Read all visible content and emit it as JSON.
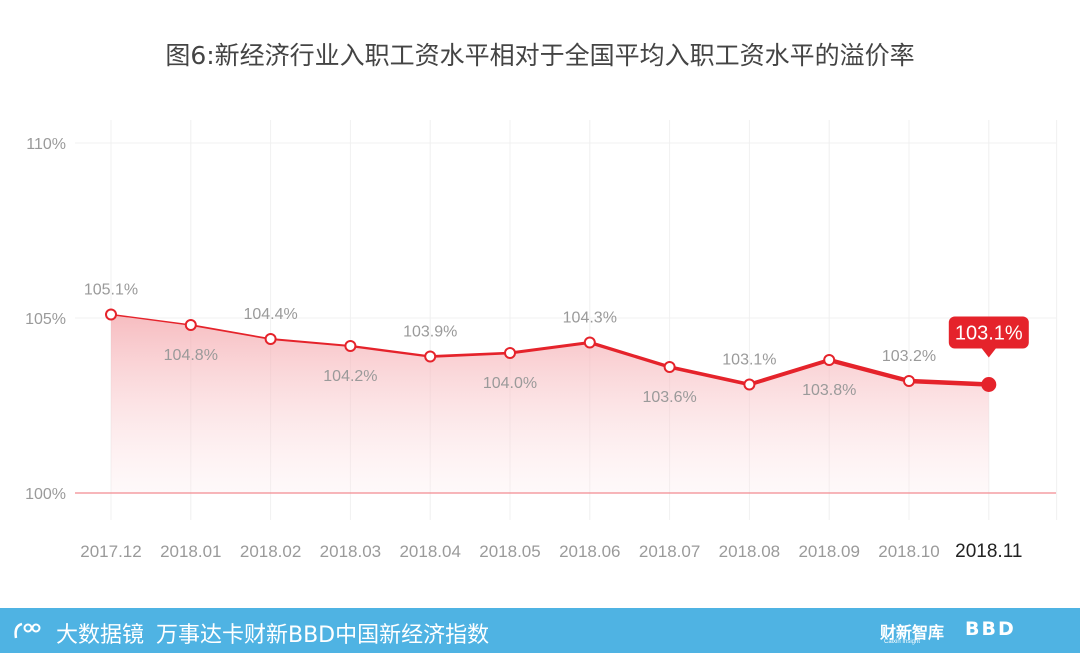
{
  "chart_data": {
    "type": "line",
    "title": "图6:新经济行业入职工资水平相对于全国平均入职工资水平的溢价率",
    "categories": [
      "2017.12",
      "2018.01",
      "2018.02",
      "2018.03",
      "2018.04",
      "2018.05",
      "2018.06",
      "2018.07",
      "2018.08",
      "2018.09",
      "2018.10",
      "2018.11"
    ],
    "series": [
      {
        "values": [
          105.1,
          104.8,
          104.4,
          104.2,
          103.9,
          104.0,
          104.3,
          103.6,
          103.1,
          103.8,
          103.2,
          103.1
        ],
        "labels": [
          "105.1%",
          "104.8%",
          "104.4%",
          "104.2%",
          "103.9%",
          "104.0%",
          "104.3%",
          "103.6%",
          "103.1%",
          "103.8%",
          "103.2%",
          "103.1%"
        ]
      }
    ],
    "y_ticks": [
      "110%",
      "105%",
      "100%"
    ],
    "ylim": [
      100,
      110
    ],
    "grid": true,
    "highlight_label": "103.1%",
    "colors": {
      "line": "#e5232b",
      "area": "#f8c9cc",
      "grid": "#f0f0f0",
      "baseline": "#f28b91"
    }
  },
  "footer": {
    "logo_text": "大数据镜",
    "tagline": "万事达卡财新BBD中国新经济指数",
    "logo_caixin": "财新智库",
    "logo_caixin_sub": "Caixin Insight",
    "logo_bbd": "BBD"
  }
}
